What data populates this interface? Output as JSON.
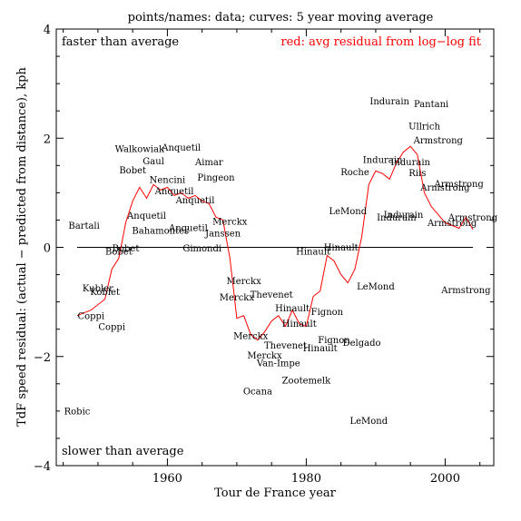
{
  "chart_data": {
    "type": "scatter",
    "title": "points/names: data; curves: 5 year moving average",
    "xlabel": "Tour de France year",
    "ylabel": "TdF speed residual: (actual − predicted from distance), kph",
    "xlim": [
      1944,
      2007
    ],
    "ylim": [
      -4,
      4
    ],
    "xticks": [
      1960,
      1980,
      2000
    ],
    "yticks": [
      -4,
      -2,
      0,
      2,
      4
    ],
    "annotations": {
      "top_left": "faster than average",
      "top_right": "red: avg residual from log−log fit",
      "bottom_left": "slower than average"
    },
    "colors": {
      "axes": "#000000",
      "moving_average": "#ff0000",
      "zero_line": "#000000"
    },
    "zero_line": 0,
    "points": [
      {
        "year": 1947,
        "name": "Robic",
        "value": -2.99
      },
      {
        "year": 1948,
        "name": "Bartali",
        "value": 0.41
      },
      {
        "year": 1949,
        "name": "Coppi",
        "value": -1.25
      },
      {
        "year": 1950,
        "name": "Kubler",
        "value": -0.74
      },
      {
        "year": 1951,
        "name": "Koblet",
        "value": -0.81
      },
      {
        "year": 1952,
        "name": "Coppi",
        "value": -1.45
      },
      {
        "year": 1953,
        "name": "Bobet",
        "value": -0.07
      },
      {
        "year": 1954,
        "name": "Bobet",
        "value": -0.01
      },
      {
        "year": 1955,
        "name": "Bobet",
        "value": 1.42
      },
      {
        "year": 1956,
        "name": "Walkowiak",
        "value": 1.81
      },
      {
        "year": 1957,
        "name": "Anquetil",
        "value": 0.59
      },
      {
        "year": 1958,
        "name": "Gaul",
        "value": 1.59
      },
      {
        "year": 1959,
        "name": "Bahamontes",
        "value": 0.32
      },
      {
        "year": 1960,
        "name": "Nencini",
        "value": 1.25
      },
      {
        "year": 1961,
        "name": "Anquetil",
        "value": 1.04
      },
      {
        "year": 1962,
        "name": "Anquetil",
        "value": 1.84
      },
      {
        "year": 1963,
        "name": "Anquetil",
        "value": 0.37
      },
      {
        "year": 1964,
        "name": "Anquetil",
        "value": 0.87
      },
      {
        "year": 1965,
        "name": "Gimondi",
        "value": -0.01
      },
      {
        "year": 1966,
        "name": "Aimar",
        "value": 1.57
      },
      {
        "year": 1967,
        "name": "Pingeon",
        "value": 1.29
      },
      {
        "year": 1968,
        "name": "Janssen",
        "value": 0.27
      },
      {
        "year": 1969,
        "name": "Merckx",
        "value": 0.48
      },
      {
        "year": 1970,
        "name": "Merckx",
        "value": -0.91
      },
      {
        "year": 1971,
        "name": "Merckx",
        "value": -0.61
      },
      {
        "year": 1972,
        "name": "Merckx",
        "value": -1.61
      },
      {
        "year": 1973,
        "name": "Ocana",
        "value": -2.63
      },
      {
        "year": 1974,
        "name": "Merckx",
        "value": -1.97
      },
      {
        "year": 1975,
        "name": "Thevenet",
        "value": -0.86
      },
      {
        "year": 1976,
        "name": "Van-Impe",
        "value": -2.11
      },
      {
        "year": 1977,
        "name": "Thevenet",
        "value": -1.79
      },
      {
        "year": 1978,
        "name": "Hinault",
        "value": -1.11
      },
      {
        "year": 1979,
        "name": "Hinault",
        "value": -1.39
      },
      {
        "year": 1980,
        "name": "Zootemelk",
        "value": -2.43
      },
      {
        "year": 1981,
        "name": "Hinault",
        "value": -0.07
      },
      {
        "year": 1982,
        "name": "Hinault",
        "value": -1.84
      },
      {
        "year": 1983,
        "name": "Fignon",
        "value": -1.17
      },
      {
        "year": 1984,
        "name": "Fignon",
        "value": -1.69
      },
      {
        "year": 1985,
        "name": "Hinault",
        "value": 0.01
      },
      {
        "year": 1986,
        "name": "LeMond",
        "value": 0.67
      },
      {
        "year": 1987,
        "name": "Roche",
        "value": 1.39
      },
      {
        "year": 1988,
        "name": "Delgado",
        "value": -1.74
      },
      {
        "year": 1989,
        "name": "LeMond",
        "value": -3.17
      },
      {
        "year": 1990,
        "name": "LeMond",
        "value": -0.71
      },
      {
        "year": 1991,
        "name": "Indurain",
        "value": 1.61
      },
      {
        "year": 1992,
        "name": "Indurain",
        "value": 2.69
      },
      {
        "year": 1993,
        "name": "Indurain",
        "value": 0.56
      },
      {
        "year": 1994,
        "name": "Indurain",
        "value": 0.61
      },
      {
        "year": 1995,
        "name": "Indurain",
        "value": 1.57
      },
      {
        "year": 1996,
        "name": "Riis",
        "value": 1.37
      },
      {
        "year": 1997,
        "name": "Ullrich",
        "value": 2.23
      },
      {
        "year": 1998,
        "name": "Pantani",
        "value": 2.64
      },
      {
        "year": 1999,
        "name": "Armstrong",
        "value": 1.97
      },
      {
        "year": 2000,
        "name": "Armstrong",
        "value": 1.11
      },
      {
        "year": 2001,
        "name": "Armstrong",
        "value": 0.46
      },
      {
        "year": 2002,
        "name": "Armstrong",
        "value": 1.17
      },
      {
        "year": 2003,
        "name": "Armstrong",
        "value": -0.77
      },
      {
        "year": 2004,
        "name": "Armstrong",
        "value": 0.56
      }
    ],
    "moving_average": {
      "x": [
        1947,
        1949,
        1951,
        1952,
        1953,
        1954,
        1955,
        1956,
        1957,
        1958,
        1959,
        1960,
        1961,
        1962,
        1963,
        1964,
        1965,
        1966,
        1967,
        1968,
        1969,
        1970,
        1971,
        1972,
        1973,
        1974,
        1975,
        1976,
        1977,
        1978,
        1979,
        1980,
        1981,
        1982,
        1983,
        1984,
        1985,
        1986,
        1987,
        1988,
        1989,
        1990,
        1991,
        1992,
        1993,
        1994,
        1995,
        1996,
        1997,
        1998,
        1999,
        2000,
        2001,
        2002,
        2003,
        2004
      ],
      "y": [
        -1.25,
        -1.15,
        -0.95,
        -0.4,
        -0.2,
        0.45,
        0.85,
        1.1,
        0.9,
        1.15,
        1.05,
        1.1,
        0.95,
        1.0,
        0.9,
        0.95,
        0.85,
        0.8,
        0.55,
        0.5,
        -0.2,
        -1.3,
        -1.25,
        -1.6,
        -1.7,
        -1.55,
        -1.35,
        -1.25,
        -1.45,
        -1.15,
        -1.4,
        -1.45,
        -0.9,
        -0.8,
        -0.15,
        -0.25,
        -0.5,
        -0.65,
        -0.4,
        0.2,
        1.15,
        1.4,
        1.35,
        1.25,
        1.55,
        1.75,
        1.85,
        1.7,
        1.0,
        0.75,
        0.6,
        0.45,
        0.4,
        0.35,
        0.55,
        0.33
      ]
    }
  }
}
